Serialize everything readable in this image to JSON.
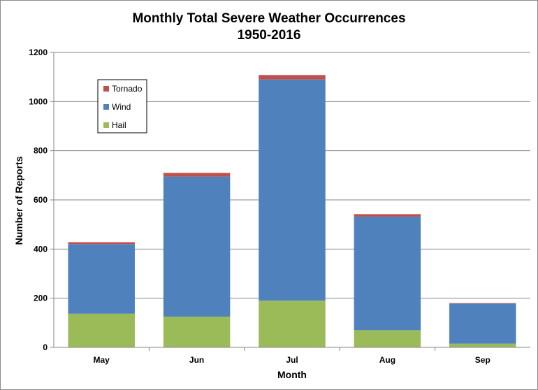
{
  "chart_data": {
    "type": "bar",
    "stacked": true,
    "title": "Monthly Total Severe Weather Occurrences",
    "subtitle": "1950-2016",
    "xlabel": "Month",
    "ylabel": "Number of Reports",
    "categories": [
      "May",
      "Jun",
      "Jul",
      "Aug",
      "Sep"
    ],
    "series": [
      {
        "name": "Hail",
        "color": "#9bbb59",
        "values": [
          137,
          125,
          190,
          70,
          15
        ]
      },
      {
        "name": "Wind",
        "color": "#4f81bd",
        "values": [
          283,
          570,
          900,
          462,
          163
        ]
      },
      {
        "name": "Tornado",
        "color": "#c0504d",
        "values": [
          8,
          15,
          18,
          10,
          2
        ]
      }
    ],
    "ylim": [
      0,
      1200
    ],
    "yticks": [
      0,
      200,
      400,
      600,
      800,
      1000,
      1200
    ],
    "grid": true,
    "legend_position": "top-left",
    "legend_order": [
      "Tornado",
      "Wind",
      "Hail"
    ]
  }
}
